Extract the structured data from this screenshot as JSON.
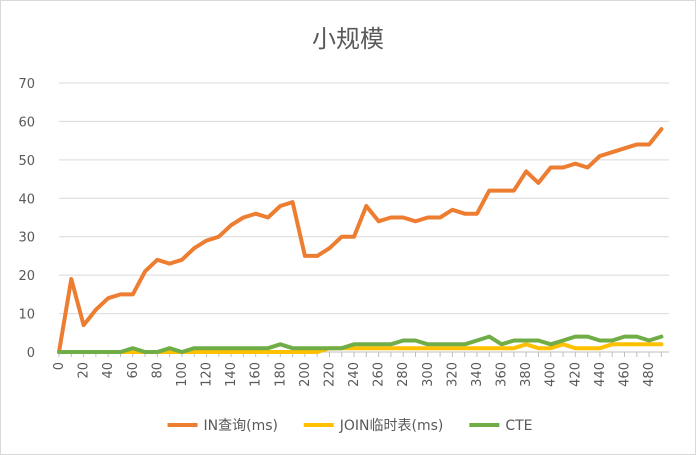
{
  "chart_data": {
    "type": "line",
    "title": "小规模",
    "xlabel": "",
    "ylabel": "",
    "ylim": [
      0,
      70
    ],
    "yticks": [
      0,
      10,
      20,
      30,
      40,
      50,
      60,
      70
    ],
    "x": [
      0,
      10,
      20,
      30,
      40,
      50,
      60,
      70,
      80,
      90,
      100,
      110,
      120,
      130,
      140,
      150,
      160,
      170,
      180,
      190,
      200,
      210,
      220,
      230,
      240,
      250,
      260,
      270,
      280,
      290,
      300,
      310,
      320,
      330,
      340,
      350,
      360,
      370,
      380,
      390,
      400,
      410,
      420,
      430,
      440,
      450,
      460,
      470,
      480,
      490
    ],
    "xticks": [
      0,
      20,
      40,
      60,
      80,
      100,
      120,
      140,
      160,
      180,
      200,
      220,
      240,
      260,
      280,
      300,
      320,
      340,
      360,
      380,
      400,
      420,
      440,
      460,
      480
    ],
    "grid": true,
    "legend_position": "bottom",
    "series": [
      {
        "name": "IN查询(ms)",
        "color": "#ED7D31",
        "values": [
          0,
          19,
          7,
          11,
          14,
          15,
          15,
          21,
          24,
          23,
          24,
          27,
          29,
          30,
          33,
          35,
          36,
          35,
          38,
          39,
          25,
          25,
          27,
          30,
          30,
          38,
          34,
          35,
          35,
          34,
          35,
          35,
          37,
          36,
          36,
          42,
          42,
          42,
          47,
          44,
          48,
          48,
          49,
          48,
          51,
          52,
          53,
          54,
          54,
          58
        ]
      },
      {
        "name": "JOIN临时表(ms)",
        "color": "#FFC000",
        "values": [
          0,
          0,
          0,
          0,
          0,
          0,
          0,
          0,
          0,
          0,
          0,
          0,
          0,
          0,
          0,
          0,
          0,
          0,
          0,
          0,
          0,
          0,
          1,
          1,
          1,
          1,
          1,
          1,
          1,
          1,
          1,
          1,
          1,
          1,
          1,
          1,
          1,
          1,
          2,
          1,
          1,
          2,
          1,
          1,
          1,
          2,
          2,
          2,
          2,
          2
        ]
      },
      {
        "name": "CTE",
        "color": "#70AD47",
        "values": [
          0,
          0,
          0,
          0,
          0,
          0,
          1,
          0,
          0,
          1,
          0,
          1,
          1,
          1,
          1,
          1,
          1,
          1,
          2,
          1,
          1,
          1,
          1,
          1,
          2,
          2,
          2,
          2,
          3,
          3,
          2,
          2,
          2,
          2,
          3,
          4,
          2,
          3,
          3,
          3,
          2,
          3,
          4,
          4,
          3,
          3,
          4,
          4,
          3,
          4
        ]
      }
    ]
  }
}
